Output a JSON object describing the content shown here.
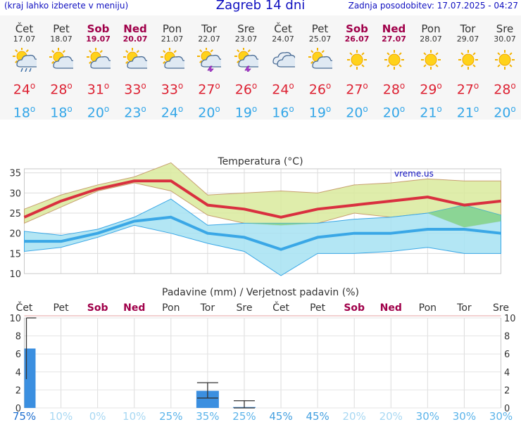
{
  "header": {
    "menu_hint": "(kraj lahko izberete v meniju)",
    "title": "Zagreb 14 dni",
    "updated": "Zadnja posodobitev: 17.07.2025 - 04:27"
  },
  "days": [
    {
      "name": "Čet",
      "date": "17.07",
      "weekend": false,
      "icon": "sun-cloud-rain-icon",
      "tmax": "24",
      "tmin": "18"
    },
    {
      "name": "Pet",
      "date": "18.07",
      "weekend": false,
      "icon": "sun-cloud-icon",
      "tmax": "28",
      "tmin": "18"
    },
    {
      "name": "Sob",
      "date": "19.07",
      "weekend": true,
      "icon": "sun-cloud-icon",
      "tmax": "31",
      "tmin": "20"
    },
    {
      "name": "Ned",
      "date": "20.07",
      "weekend": true,
      "icon": "sun-cloud-icon",
      "tmax": "33",
      "tmin": "23"
    },
    {
      "name": "Pon",
      "date": "21.07",
      "weekend": false,
      "icon": "sun-cloud-icon",
      "tmax": "33",
      "tmin": "24"
    },
    {
      "name": "Tor",
      "date": "22.07",
      "weekend": false,
      "icon": "sun-cloud-storm-icon",
      "tmax": "27",
      "tmin": "20"
    },
    {
      "name": "Sre",
      "date": "23.07",
      "weekend": false,
      "icon": "sun-cloud-storm-icon",
      "tmax": "26",
      "tmin": "19"
    },
    {
      "name": "Čet",
      "date": "24.07",
      "weekend": false,
      "icon": "cloud-icon",
      "tmax": "24",
      "tmin": "16"
    },
    {
      "name": "Pet",
      "date": "25.07",
      "weekend": false,
      "icon": "sun-cloud-icon",
      "tmax": "26",
      "tmin": "19"
    },
    {
      "name": "Sob",
      "date": "26.07",
      "weekend": true,
      "icon": "sun-icon",
      "tmax": "27",
      "tmin": "20"
    },
    {
      "name": "Ned",
      "date": "27.07",
      "weekend": true,
      "icon": "sun-icon",
      "tmax": "28",
      "tmin": "20"
    },
    {
      "name": "Pon",
      "date": "28.07",
      "weekend": false,
      "icon": "sun-icon",
      "tmax": "29",
      "tmin": "21"
    },
    {
      "name": "Tor",
      "date": "29.07",
      "weekend": false,
      "icon": "sun-icon",
      "tmax": "27",
      "tmin": "21"
    },
    {
      "name": "Sre",
      "date": "30.07",
      "weekend": false,
      "icon": "sun-icon",
      "tmax": "28",
      "tmin": "20"
    }
  ],
  "chart_data": [
    {
      "type": "line",
      "title": "Temperatura (°C)",
      "watermark": "vreme.us",
      "ylim": [
        10,
        36
      ],
      "yticks": [
        10,
        15,
        20,
        25,
        30,
        35
      ],
      "categories": [
        "Čet",
        "Pet",
        "Sob",
        "Ned",
        "Pon",
        "Tor",
        "Sre",
        "Čet",
        "Pet",
        "Sob",
        "Ned",
        "Pon",
        "Tor",
        "Sre"
      ],
      "grid": true,
      "series": [
        {
          "name": "max",
          "color": "#dd3344",
          "values": [
            24,
            28,
            31,
            33,
            33,
            27,
            26,
            24,
            26,
            27,
            28,
            29,
            27,
            28
          ]
        },
        {
          "name": "max-band-upper",
          "color": "#d8e89a",
          "values": [
            26,
            29.5,
            32,
            34,
            37.5,
            29.5,
            30,
            30.5,
            30,
            32,
            32.5,
            33.5,
            33,
            33
          ]
        },
        {
          "name": "max-band-lower",
          "color": "#d8e89a",
          "values": [
            22.5,
            26.5,
            30.5,
            32.5,
            30.5,
            24.5,
            22.5,
            22,
            22.5,
            25,
            24,
            25,
            21.5,
            23
          ]
        },
        {
          "name": "min",
          "color": "#3aa7e6",
          "values": [
            18,
            18,
            20,
            23,
            24,
            20,
            19,
            16,
            19,
            20,
            20,
            21,
            21,
            20
          ]
        },
        {
          "name": "min-band-upper",
          "color": "#a8e2f0",
          "values": [
            20.5,
            19.5,
            21,
            24,
            28.5,
            22,
            22.5,
            22.5,
            22.5,
            23.5,
            24,
            25,
            27,
            24.5
          ]
        },
        {
          "name": "min-band-lower",
          "color": "#a8e2f0",
          "values": [
            15.5,
            16.5,
            19,
            22,
            20,
            17.5,
            15.5,
            9.5,
            15,
            15,
            15.5,
            16.5,
            15,
            15
          ]
        }
      ]
    },
    {
      "type": "bar",
      "title": "Padavine (mm) / Verjetnost padavin (%)",
      "ylim": [
        0,
        10
      ],
      "yticks": [
        0,
        2,
        4,
        6,
        8,
        10
      ],
      "categories": [
        "Čet",
        "Pet",
        "Sob",
        "Ned",
        "Pon",
        "Tor",
        "Sre",
        "Čet",
        "Pet",
        "Sob",
        "Ned",
        "Pon",
        "Tor",
        "Sre"
      ],
      "values": [
        6.6,
        0,
        0,
        0,
        0,
        1.9,
        0.1,
        0,
        0,
        0,
        0,
        0,
        0,
        0
      ],
      "ranges": [
        [
          3.2,
          10.4
        ],
        null,
        null,
        null,
        null,
        [
          1.1,
          2.8
        ],
        [
          0,
          0.8
        ],
        null,
        null,
        null,
        null,
        null,
        null,
        null
      ],
      "probabilities": [
        "75%",
        "10%",
        "0%",
        "10%",
        "25%",
        "35%",
        "25%",
        "45%",
        "45%",
        "20%",
        "20%",
        "30%",
        "30%",
        "30%"
      ],
      "prob_values": [
        75,
        10,
        0,
        10,
        25,
        35,
        25,
        45,
        45,
        20,
        20,
        30,
        30,
        30
      ],
      "bar_color": "#3b8fe0"
    }
  ]
}
